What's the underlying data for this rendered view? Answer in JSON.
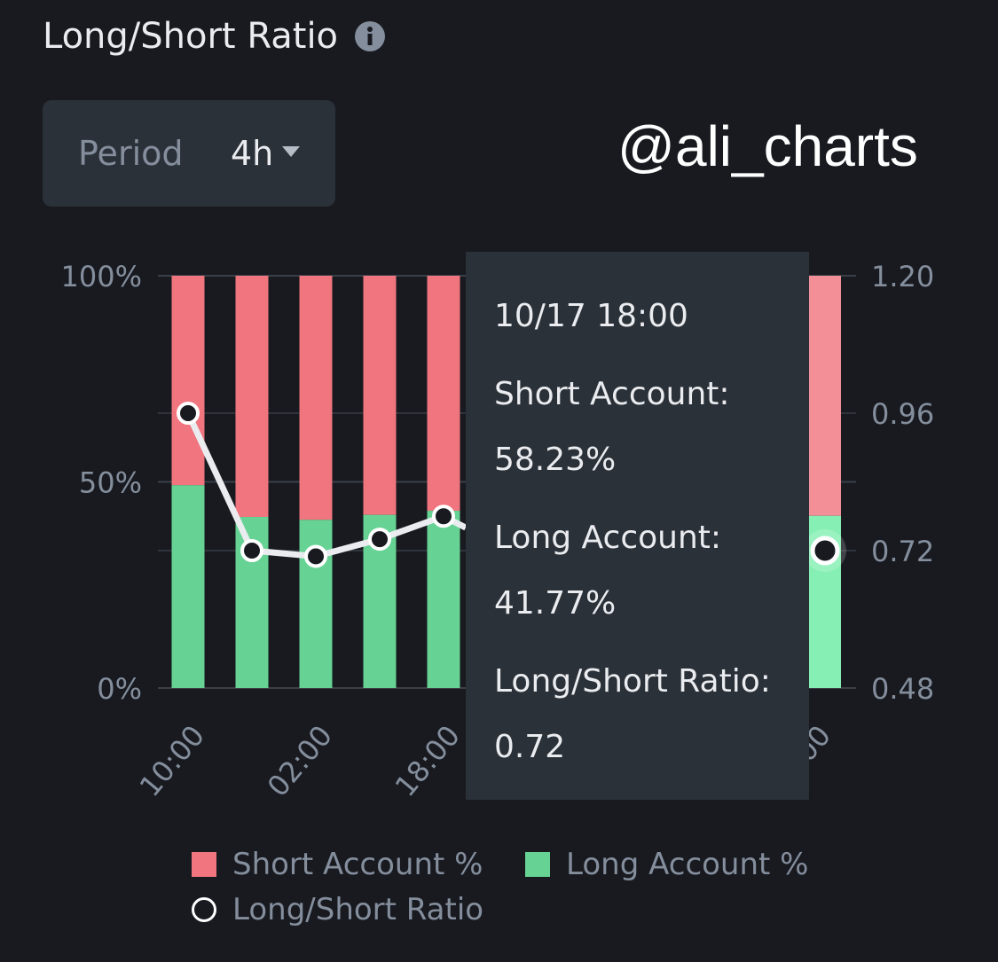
{
  "header": {
    "title": "Long/Short Ratio",
    "info_icon": "info-circle-icon"
  },
  "period": {
    "label": "Period",
    "value": "4h",
    "caret_icon": "caret-down-icon"
  },
  "watermark": "@ali_charts",
  "tooltip": {
    "time": "10/17 18:00",
    "short_label": "Short Account:",
    "short_value": "58.23%",
    "long_label": "Long Account:",
    "long_value": "41.77%",
    "ratio_label": "Long/Short Ratio:",
    "ratio_value": "0.72"
  },
  "legend": {
    "short": "Short Account %",
    "long": "Long Account %",
    "ratio": "Long/Short Ratio"
  },
  "colors": {
    "short": "#f0757e",
    "long": "#66d394",
    "short_highlight": "#f28f97",
    "long_highlight": "#86efb4",
    "ratio_line": "#eaecef",
    "grid": "#2b3139",
    "axis_text": "#848e9c"
  },
  "chart_data": {
    "type": "bar",
    "stacked": true,
    "categories": [
      "10:00",
      "",
      "02:00",
      "",
      "18:00",
      "",
      "",
      "",
      "",
      "",
      "10/17 18:00"
    ],
    "x_tick_labels": [
      {
        "index": 0,
        "label": "10:00"
      },
      {
        "index": 2,
        "label": "02:00"
      },
      {
        "index": 4,
        "label": "18:00"
      },
      {
        "index": 10,
        "label": "00"
      }
    ],
    "series": [
      {
        "name": "Long Account %",
        "values": [
          49.2,
          41.5,
          40.8,
          42.0,
          43.0,
          42.0,
          42.0,
          42.0,
          42.0,
          42.0,
          41.77
        ]
      },
      {
        "name": "Short Account %",
        "values": [
          50.8,
          58.5,
          59.2,
          58.0,
          57.0,
          58.0,
          58.0,
          58.0,
          58.0,
          58.0,
          58.23
        ]
      },
      {
        "name": "Long/Short Ratio",
        "axis": "right",
        "values": [
          0.96,
          0.72,
          0.71,
          0.74,
          0.78,
          0.76,
          null,
          null,
          null,
          null,
          0.72
        ]
      }
    ],
    "visible_count": 5,
    "highlight_index": 10,
    "y_left": {
      "ticks": [
        "0%",
        "50%",
        "100%"
      ],
      "lim": [
        0,
        100
      ]
    },
    "y_right": {
      "ticks": [
        "0.48",
        "0.72",
        "0.96",
        "1.20"
      ],
      "lim": [
        0.48,
        1.2
      ]
    },
    "legend_position": "bottom"
  }
}
